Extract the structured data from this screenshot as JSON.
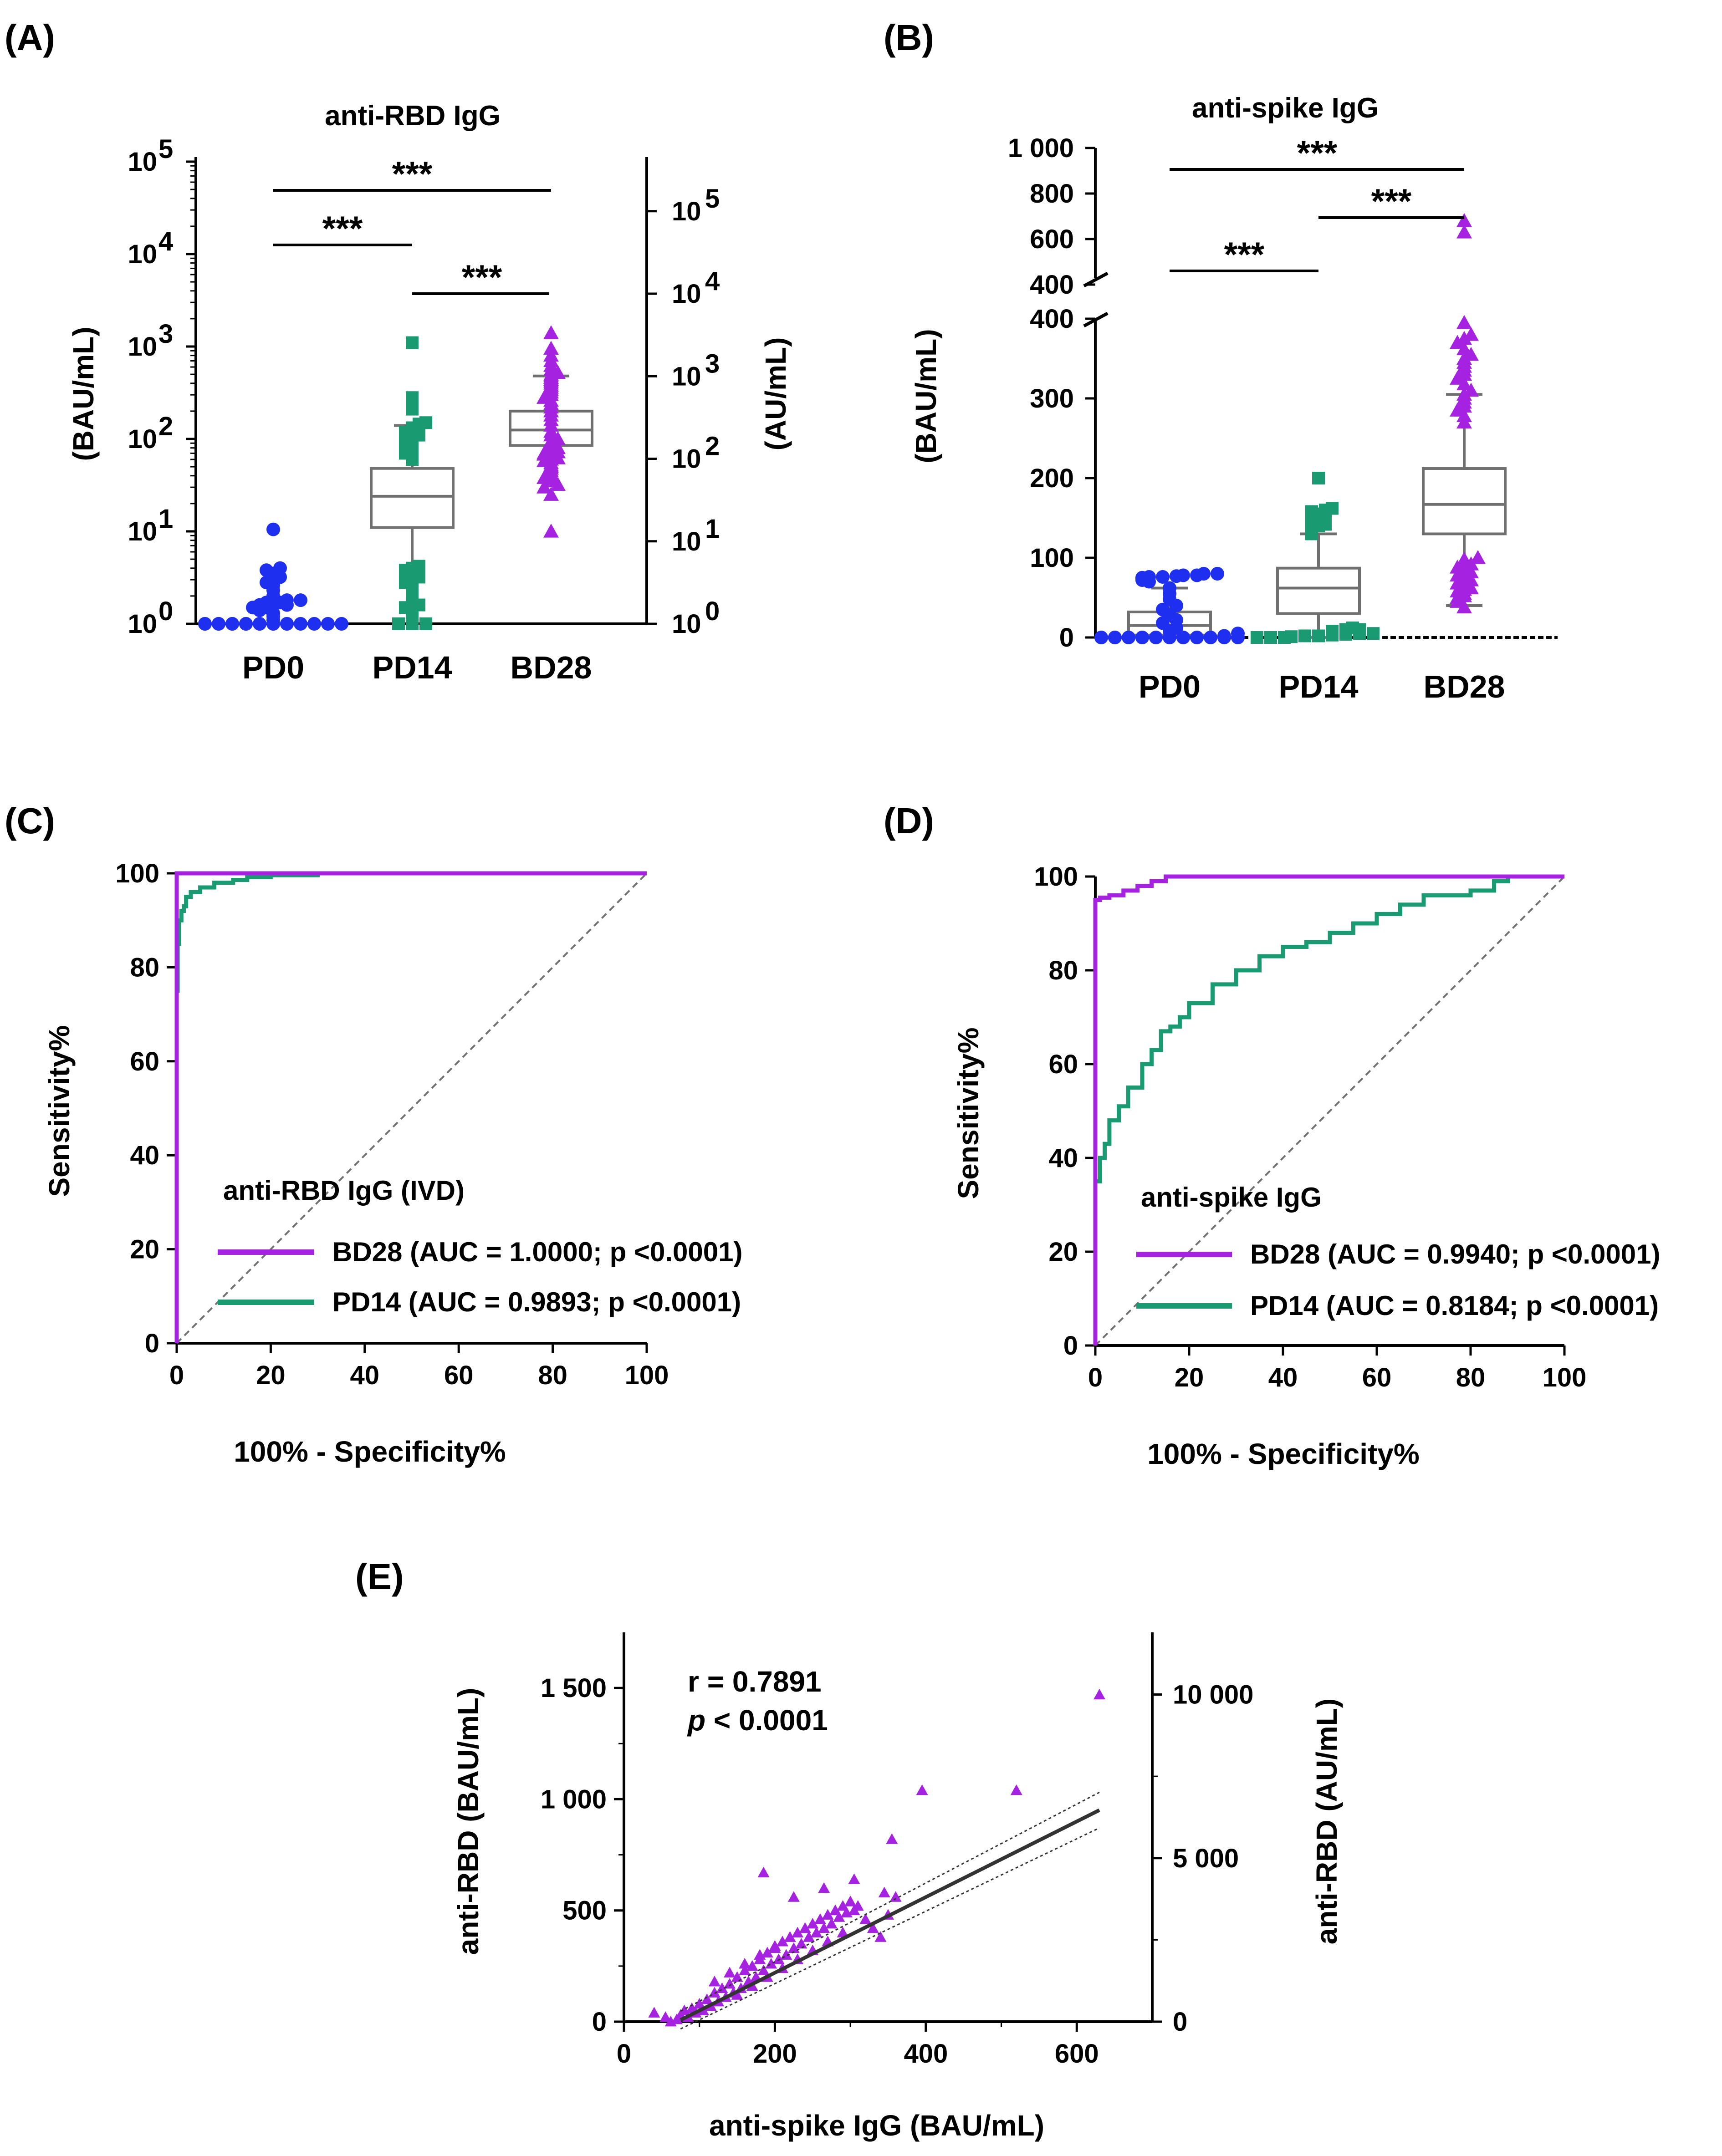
{
  "colors": {
    "blue": "#1f2ff0",
    "green": "#1a9a70",
    "purple": "#a422e0",
    "box": "#707070",
    "black": "#000000"
  },
  "chart_data": [
    {
      "panel": "(A)",
      "type": "box-scatter",
      "title": "anti-RBD IgG",
      "ylabel": "(BAU/mL)",
      "y2label": "(AU/mL)",
      "scale": "log",
      "ylim": [
        1,
        100000
      ],
      "yticks": [
        "10",
        "10",
        "10",
        "10",
        "10",
        "10"
      ],
      "yexp": [
        "0",
        "1",
        "2",
        "3",
        "4",
        "5"
      ],
      "y2ticks": [
        "10",
        "10",
        "10",
        "10",
        "10",
        "10"
      ],
      "y2exp": [
        "0",
        "1",
        "2",
        "3",
        "4",
        "5"
      ],
      "categories": [
        "PD0",
        "PD14",
        "BD28"
      ],
      "boxes": [
        {
          "name": "PD0",
          "min": 1,
          "q1": 1,
          "median": 1,
          "q3": 1,
          "max": 1,
          "points": [
            1,
            1,
            1,
            1,
            1,
            1,
            1,
            1,
            1,
            1,
            1,
            1,
            1,
            1,
            1,
            1,
            1,
            1,
            1.1,
            1.2,
            1.3,
            1.4,
            1.5,
            1.5,
            1.6,
            1.6,
            1.6,
            1.7,
            1.7,
            1.8,
            1.8,
            1.8,
            2,
            2.3,
            2.6,
            2.8,
            3,
            3.2,
            3.5,
            3.8,
            4,
            10.5
          ]
        },
        {
          "name": "PD14",
          "min": 1,
          "q1": 11,
          "median": 24,
          "q3": 48,
          "max": 140,
          "points": [
            1,
            1,
            1,
            1.1,
            1.2,
            1.3,
            1.5,
            1.6,
            1.8,
            2,
            2.2,
            2.5,
            2.8,
            3,
            3.2,
            3.5,
            3.8,
            4,
            4.2,
            60,
            70,
            75,
            80,
            85,
            88,
            90,
            92,
            95,
            98,
            100,
            103,
            105,
            108,
            110,
            112,
            115,
            118,
            120,
            122,
            125,
            128,
            130,
            132,
            135,
            138,
            140,
            145,
            150,
            210,
            250,
            280,
            1100
          ]
        },
        {
          "name": "BD28",
          "min": 30,
          "q1": 85,
          "median": 125,
          "q3": 200,
          "max": 480,
          "points": [
            10,
            25,
            30,
            32,
            35,
            38,
            40,
            42,
            45,
            48,
            50,
            52,
            55,
            58,
            60,
            62,
            65,
            68,
            70,
            72,
            75,
            78,
            80,
            85,
            90,
            95,
            100,
            110,
            120,
            140,
            160,
            180,
            200,
            220,
            240,
            260,
            280,
            300,
            320,
            340,
            360,
            380,
            400,
            420,
            440,
            460,
            480,
            500,
            520,
            560,
            620,
            700,
            800,
            950,
            1400
          ]
        }
      ],
      "significance": [
        {
          "groups": [
            "PD0",
            "BD28"
          ],
          "label": "***"
        },
        {
          "groups": [
            "PD0",
            "PD14"
          ],
          "label": "***"
        },
        {
          "groups": [
            "PD14",
            "BD28"
          ],
          "label": "***"
        }
      ]
    },
    {
      "panel": "(B)",
      "type": "box-scatter",
      "title": "anti-spike IgG",
      "ylabel": "(BAU/mL)",
      "scale": "linear-with-break",
      "ylim_lower": [
        0,
        400
      ],
      "ylim_upper": [
        400,
        1000
      ],
      "yticks_lower": [
        "0",
        "100",
        "200",
        "300",
        "400"
      ],
      "yticks_upper": [
        "400",
        "600",
        "800",
        "1 000"
      ],
      "categories": [
        "PD0",
        "PD14",
        "BD28"
      ],
      "boxes": [
        {
          "name": "PD0",
          "min": 0,
          "q1": 3,
          "median": 15,
          "q3": 32,
          "max": 62,
          "points": [
            0,
            0,
            0,
            0,
            0,
            0,
            0,
            0,
            0,
            0,
            0,
            0,
            0,
            0,
            0,
            0,
            0,
            0,
            0,
            0,
            2,
            5,
            8,
            12,
            18,
            22,
            28,
            35,
            40,
            48,
            55,
            62,
            70,
            72,
            74,
            75,
            76,
            76,
            77,
            78,
            78,
            80,
            80
          ]
        },
        {
          "name": "PD14",
          "min": 0,
          "q1": 30,
          "median": 62,
          "q3": 87,
          "max": 130,
          "points": [
            0,
            0,
            0,
            1,
            2,
            2,
            3,
            4,
            5,
            5,
            6,
            7,
            8,
            8,
            10,
            10,
            12,
            130,
            135,
            138,
            140,
            142,
            145,
            148,
            150,
            152,
            155,
            158,
            160,
            162,
            200
          ]
        },
        {
          "name": "BD28",
          "min": 40,
          "q1": 130,
          "median": 167,
          "q3": 212,
          "max": 305,
          "points": [
            38,
            45,
            50,
            52,
            55,
            58,
            60,
            62,
            65,
            68,
            70,
            72,
            75,
            78,
            80,
            82,
            85,
            88,
            90,
            92,
            95,
            98,
            100,
            270,
            278,
            285,
            290,
            295,
            300,
            305,
            310,
            318,
            325,
            330,
            335,
            340,
            345,
            350,
            355,
            362,
            370,
            375,
            380,
            395,
            630,
            680
          ]
        }
      ],
      "significance": [
        {
          "groups": [
            "PD0",
            "BD28"
          ],
          "label": "***"
        },
        {
          "groups": [
            "PD14",
            "BD28"
          ],
          "label": "***"
        },
        {
          "groups": [
            "PD0",
            "PD14"
          ],
          "label": "***"
        }
      ]
    },
    {
      "panel": "(C)",
      "type": "line",
      "xlabel": "100% - Specificity%",
      "ylabel": "Sensitivity%",
      "xlim": [
        0,
        100
      ],
      "ylim": [
        0,
        100
      ],
      "xticks": [
        "0",
        "20",
        "40",
        "60",
        "80",
        "100"
      ],
      "yticks": [
        "0",
        "20",
        "40",
        "60",
        "80",
        "100"
      ],
      "legend_title": "anti-RBD IgG (IVD)",
      "series": [
        {
          "name": "BD28 (AUC = 1.0000; p <0.0001)",
          "x": [
            0,
            0,
            0.3,
            100
          ],
          "y": [
            0,
            99.5,
            100,
            100
          ]
        },
        {
          "name": "PD14 (AUC = 0.9893; p <0.0001)",
          "x": [
            0,
            0.2,
            0.5,
            1,
            1.5,
            2,
            3,
            5,
            8,
            12,
            15,
            20,
            30,
            50,
            100
          ],
          "y": [
            0,
            75,
            85,
            90,
            92,
            93,
            95,
            96,
            97,
            98,
            98.6,
            99.2,
            99.6,
            100,
            100
          ]
        }
      ]
    },
    {
      "panel": "(D)",
      "type": "line",
      "xlabel": "100% - Specificity%",
      "ylabel": "Sensitivity%",
      "xlim": [
        0,
        100
      ],
      "ylim": [
        0,
        100
      ],
      "xticks": [
        "0",
        "20",
        "40",
        "60",
        "80",
        "100"
      ],
      "yticks": [
        "0",
        "20",
        "40",
        "60",
        "80",
        "100"
      ],
      "legend_title": "anti-spike IgG",
      "series": [
        {
          "name": "BD28 (AUC = 0.9940; p <0.0001)",
          "x": [
            0,
            0,
            1,
            3,
            6,
            9,
            12,
            15,
            20,
            100
          ],
          "y": [
            0,
            94,
            95,
            95.5,
            96,
            97,
            98,
            99,
            100,
            100
          ]
        },
        {
          "name": "PD14 (AUC = 0.8184; p <0.0001)",
          "x": [
            0,
            0,
            1,
            2,
            3,
            5,
            7,
            10,
            12,
            14,
            16,
            18,
            20,
            25,
            30,
            35,
            40,
            45,
            50,
            55,
            60,
            65,
            70,
            75,
            80,
            85,
            88,
            90,
            100
          ],
          "y": [
            0,
            30,
            35,
            40,
            43,
            48,
            51,
            55,
            60,
            63,
            67,
            68,
            70,
            73,
            77,
            80,
            83,
            85,
            86,
            88,
            90,
            92,
            94,
            96,
            96,
            97,
            99,
            100,
            100
          ]
        }
      ]
    },
    {
      "panel": "(E)",
      "type": "scatter",
      "xlabel": "anti-spike IgG (BAU/mL)",
      "ylabel": "anti-RBD (BAU/mL)",
      "y2label": "anti-RBD (AU/mL)",
      "xlim": [
        0,
        700
      ],
      "ylim": [
        0,
        1750
      ],
      "y2lim": [
        0,
        12000
      ],
      "xticks": [
        "0",
        "200",
        "400",
        "600"
      ],
      "yticks": [
        "0",
        "500",
        "1 000",
        "1 500"
      ],
      "y2ticks": [
        "0",
        "5 000",
        "10 000"
      ],
      "stat_r": "r = 0.7891",
      "stat_p_sym": "p",
      "stat_p_rest": " < 0.0001",
      "fit": {
        "slope": 1.7,
        "intercept": -120
      },
      "points": {
        "x": [
          40,
          55,
          62,
          70,
          75,
          80,
          85,
          90,
          95,
          100,
          105,
          110,
          115,
          120,
          125,
          130,
          135,
          140,
          145,
          150,
          155,
          160,
          165,
          170,
          175,
          180,
          185,
          190,
          195,
          200,
          205,
          210,
          215,
          220,
          225,
          230,
          235,
          240,
          245,
          250,
          255,
          260,
          265,
          270,
          275,
          280,
          285,
          290,
          295,
          300,
          305,
          310,
          320,
          330,
          340,
          350,
          360,
          120,
          140,
          160,
          180,
          200,
          220,
          240,
          260,
          280,
          300,
          150,
          170,
          190,
          210,
          230,
          250,
          270,
          290,
          185,
          225,
          265,
          305,
          345,
          355,
          395,
          520,
          630
        ],
        "y": [
          40,
          20,
          0,
          10,
          30,
          50,
          20,
          60,
          40,
          80,
          50,
          100,
          70,
          130,
          90,
          150,
          110,
          170,
          130,
          200,
          150,
          230,
          180,
          250,
          200,
          280,
          230,
          310,
          260,
          330,
          280,
          360,
          300,
          380,
          330,
          400,
          350,
          420,
          380,
          440,
          400,
          460,
          420,
          480,
          440,
          500,
          470,
          520,
          490,
          540,
          500,
          520,
          460,
          420,
          380,
          480,
          560,
          180,
          220,
          260,
          300,
          340,
          380,
          420,
          460,
          500,
          540,
          120,
          160,
          200,
          240,
          280,
          320,
          360,
          400,
          670,
          560,
          600,
          640,
          580,
          820,
          1040,
          1040,
          1470
        ]
      }
    }
  ]
}
